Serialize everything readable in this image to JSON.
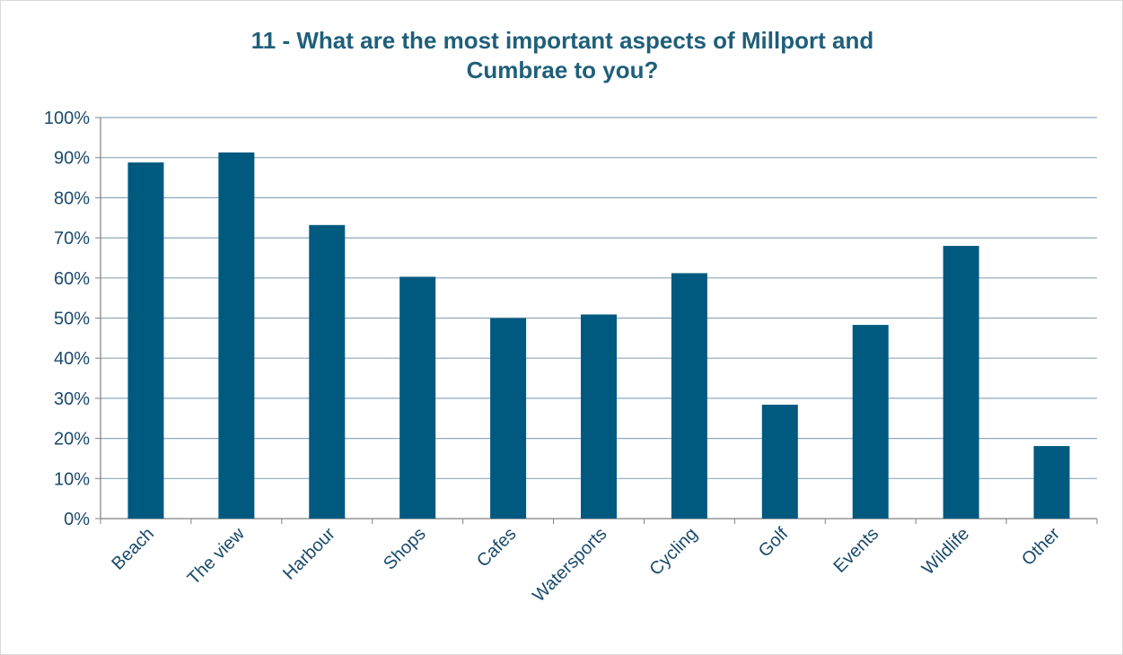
{
  "chart_data": {
    "type": "bar",
    "title_lines": [
      "11 - What are the most important aspects of Millport and",
      "Cumbrae to you?"
    ],
    "categories": [
      "Beach",
      "The view",
      "Harbour",
      "Shops",
      "Cafes",
      "Watersports",
      "Cycling",
      "Golf",
      "Events",
      "Wildlife",
      "Other"
    ],
    "values": [
      88.8,
      91.3,
      73.2,
      60.3,
      50.0,
      50.9,
      61.2,
      28.4,
      48.3,
      68.0,
      18.1
    ],
    "ylim": [
      0,
      100
    ],
    "yticks": [
      "0%",
      "10%",
      "20%",
      "30%",
      "40%",
      "50%",
      "60%",
      "70%",
      "80%",
      "90%",
      "100%"
    ],
    "grid": true,
    "bar_color": "#005a80",
    "grid_color": "#8ea9bb",
    "text_color": "#1a4a6b",
    "title_color": "#1f5f7a"
  }
}
